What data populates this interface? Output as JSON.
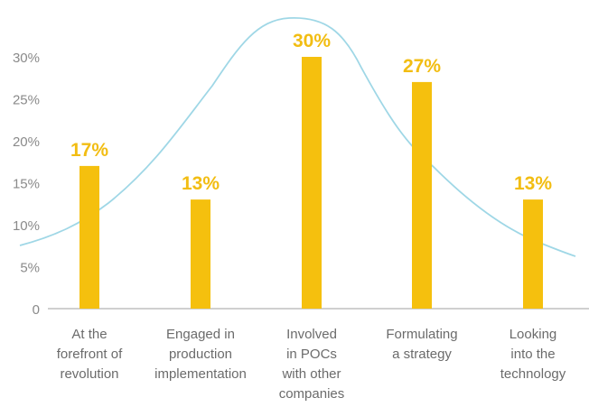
{
  "chart_data": {
    "type": "bar",
    "title": "",
    "xlabel": "",
    "ylabel": "",
    "ylim": [
      0,
      30
    ],
    "y_ticks": [
      "0",
      "5%",
      "10%",
      "15%",
      "20%",
      "25%",
      "30%"
    ],
    "categories": [
      [
        "At the",
        "forefront of",
        "revolution"
      ],
      [
        "Engaged in",
        "production",
        "implementation"
      ],
      [
        "Involved",
        "in POCs",
        "with other",
        "companies"
      ],
      [
        "Formulating",
        "a strategy"
      ],
      [
        "Looking",
        "into the",
        "technology"
      ]
    ],
    "values": [
      17,
      13,
      30,
      27,
      13
    ],
    "data_labels": [
      "17%",
      "13%",
      "30%",
      "27%",
      "13%"
    ],
    "overlay": "bell-shaped trend curve",
    "grid": false,
    "colors": {
      "bar": "#f5c00e",
      "data_label": "#f2bd12",
      "curve": "#9fd7e6",
      "axis": "#b5b5b5",
      "tick": "#8a8a8a"
    }
  }
}
